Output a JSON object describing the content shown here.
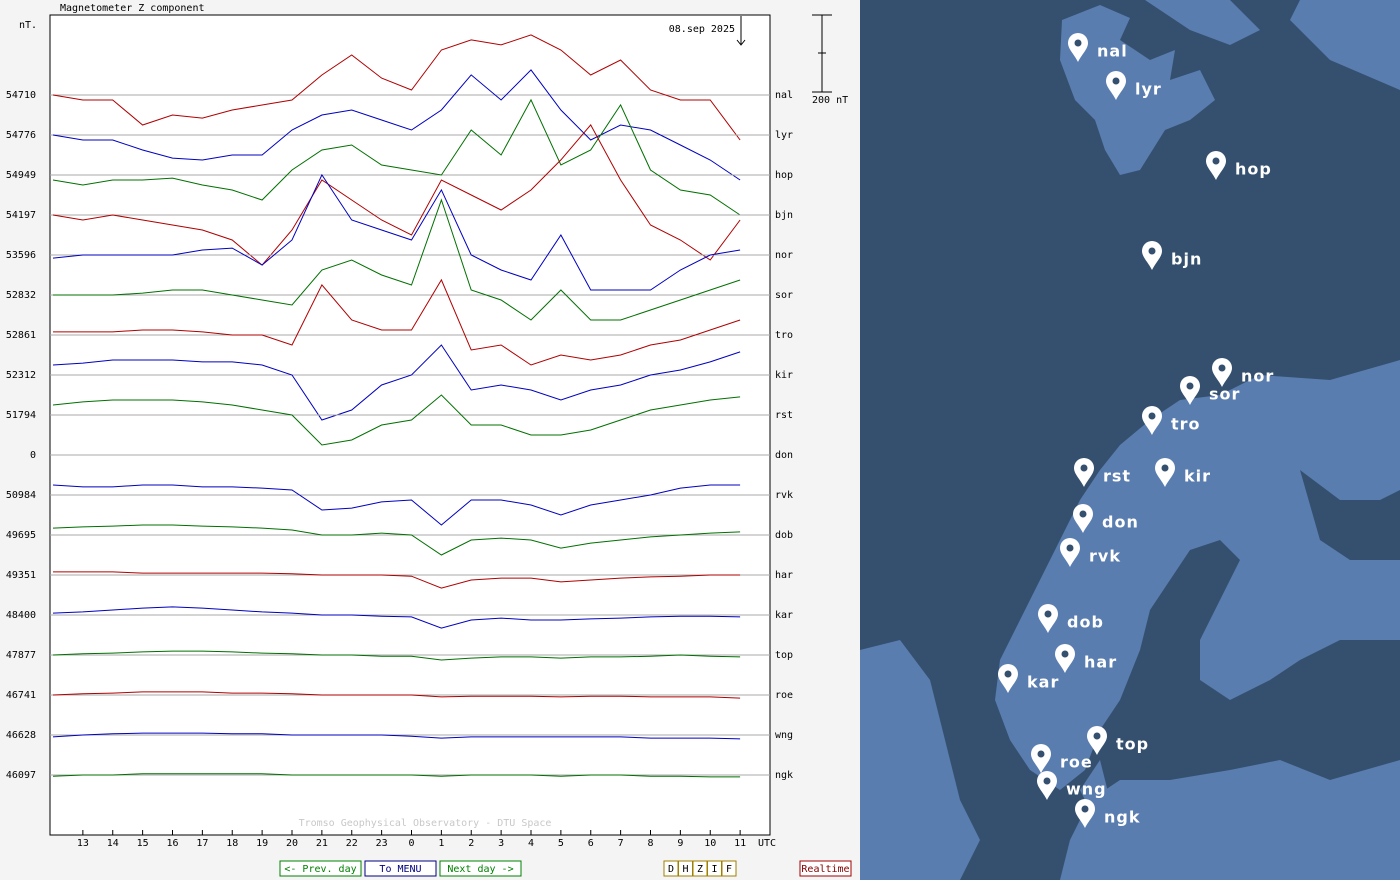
{
  "chart_data": {
    "type": "stackplot",
    "title": "Magnetometer Z component",
    "y_unit": "nT.",
    "date": "08.sep 2025",
    "scale_label": "200 nT",
    "watermark": "Tromso Geophysical Observatory - DTU Space",
    "x_label": "UTC",
    "xlim": [
      11.9,
      36
    ],
    "xticks": [
      13,
      14,
      15,
      16,
      17,
      18,
      19,
      20,
      21,
      22,
      23,
      {
        "value": 24,
        "label": "0"
      },
      {
        "value": 25,
        "label": "1"
      },
      {
        "value": 26,
        "label": "2"
      },
      {
        "value": 27,
        "label": "3"
      },
      {
        "value": 28,
        "label": "4"
      },
      {
        "value": 29,
        "label": "5"
      },
      {
        "value": 30,
        "label": "6"
      },
      {
        "value": 31,
        "label": "7"
      },
      {
        "value": 32,
        "label": "8"
      },
      {
        "value": 33,
        "label": "9"
      },
      {
        "value": 34,
        "label": "10"
      },
      {
        "value": 35,
        "label": "11"
      }
    ],
    "x": [
      12,
      13,
      14,
      15,
      16,
      17,
      18,
      19,
      20,
      21,
      22,
      23,
      24,
      25,
      26,
      27,
      28,
      29,
      30,
      31,
      32,
      33,
      34,
      35
    ],
    "series": [
      {
        "name": "nal",
        "baseline": 54710,
        "color": "#b00000",
        "values": [
          0,
          -13,
          -13,
          -78,
          -52,
          -60,
          -39,
          -26,
          -13,
          52,
          104,
          44,
          13,
          117,
          143,
          130,
          156,
          117,
          52,
          91,
          13,
          -13,
          -13,
          -117
        ]
      },
      {
        "name": "lyr",
        "baseline": 54776,
        "color": "#0000c0",
        "values": [
          0,
          -13,
          -13,
          -39,
          -60,
          -65,
          -52,
          -52,
          13,
          52,
          65,
          39,
          13,
          65,
          156,
          91,
          169,
          65,
          -13,
          26,
          13,
          -26,
          -65,
          -117
        ]
      },
      {
        "name": "hop",
        "baseline": 54949,
        "color": "#007000",
        "values": [
          -13,
          -26,
          -13,
          -13,
          -8,
          -26,
          -39,
          -65,
          13,
          65,
          78,
          26,
          13,
          0,
          117,
          52,
          195,
          26,
          65,
          182,
          13,
          -39,
          -52,
          -104
        ]
      },
      {
        "name": "bjn",
        "baseline": 54197,
        "color": "#b00000",
        "values": [
          0,
          -13,
          0,
          -13,
          -26,
          -39,
          -65,
          -130,
          -39,
          91,
          39,
          -13,
          -52,
          91,
          52,
          13,
          65,
          143,
          234,
          91,
          -26,
          -65,
          -117,
          -13
        ]
      },
      {
        "name": "nor",
        "baseline": 53596,
        "color": "#0000c0",
        "values": [
          -8,
          0,
          0,
          0,
          0,
          13,
          18,
          -26,
          39,
          208,
          91,
          65,
          39,
          169,
          0,
          -39,
          -65,
          52,
          -91,
          -91,
          -91,
          -39,
          0,
          13
        ]
      },
      {
        "name": "sor",
        "baseline": 52832,
        "color": "#007000",
        "values": [
          0,
          0,
          0,
          5,
          13,
          13,
          0,
          -13,
          -26,
          65,
          91,
          52,
          26,
          247,
          13,
          -13,
          -65,
          13,
          -65,
          -65,
          -39,
          -13,
          13,
          39
        ]
      },
      {
        "name": "tro",
        "baseline": 52861,
        "color": "#b00000",
        "values": [
          8,
          8,
          8,
          13,
          13,
          8,
          0,
          0,
          -26,
          130,
          39,
          13,
          13,
          143,
          -39,
          -26,
          -78,
          -52,
          -65,
          -52,
          -26,
          -13,
          13,
          39
        ]
      },
      {
        "name": "kir",
        "baseline": 52312,
        "color": "#0000c0",
        "values": [
          26,
          31,
          39,
          39,
          39,
          34,
          34,
          26,
          0,
          -117,
          -91,
          -26,
          0,
          78,
          -39,
          -26,
          -39,
          -65,
          -39,
          -26,
          0,
          13,
          34,
          60
        ]
      },
      {
        "name": "rst",
        "baseline": 51794,
        "color": "#007000",
        "values": [
          26,
          34,
          39,
          39,
          39,
          34,
          26,
          13,
          0,
          -78,
          -65,
          -26,
          -13,
          52,
          -26,
          -26,
          -52,
          -52,
          -39,
          -13,
          13,
          26,
          39,
          47
        ]
      },
      {
        "name": "don",
        "baseline": 0,
        "color": "#b00000",
        "values": [
          null,
          null,
          null,
          null,
          null,
          null,
          null,
          null,
          null,
          null,
          null,
          null,
          null,
          null,
          null,
          null,
          null,
          null,
          null,
          null,
          null,
          null,
          null,
          null
        ]
      },
      {
        "name": "rvk",
        "baseline": 50984,
        "color": "#0000c0",
        "values": [
          26,
          21,
          21,
          26,
          26,
          21,
          21,
          18,
          13,
          -39,
          -34,
          -18,
          -13,
          -78,
          -13,
          -13,
          -26,
          -52,
          -26,
          -13,
          0,
          18,
          26,
          26
        ]
      },
      {
        "name": "dob",
        "baseline": 49695,
        "color": "#007000",
        "values": [
          18,
          21,
          23,
          26,
          26,
          23,
          21,
          18,
          13,
          0,
          0,
          5,
          0,
          -52,
          -13,
          -8,
          -13,
          -34,
          -21,
          -13,
          -5,
          0,
          5,
          8
        ]
      },
      {
        "name": "har",
        "baseline": 49351,
        "color": "#b00000",
        "values": [
          8,
          8,
          8,
          5,
          5,
          5,
          5,
          5,
          3,
          0,
          0,
          0,
          -3,
          -34,
          -13,
          -8,
          -8,
          -18,
          -13,
          -8,
          -5,
          -3,
          0,
          0
        ]
      },
      {
        "name": "kar",
        "baseline": 48400,
        "color": "#0000c0",
        "values": [
          5,
          8,
          13,
          18,
          21,
          18,
          13,
          8,
          5,
          0,
          0,
          -3,
          -5,
          -34,
          -13,
          -8,
          -13,
          -13,
          -10,
          -8,
          -5,
          -3,
          -3,
          -5
        ]
      },
      {
        "name": "top",
        "baseline": 47877,
        "color": "#007000",
        "values": [
          0,
          3,
          5,
          8,
          10,
          10,
          8,
          5,
          3,
          0,
          0,
          -3,
          -3,
          -13,
          -8,
          -5,
          -5,
          -8,
          -5,
          -5,
          -3,
          0,
          -3,
          -5
        ]
      },
      {
        "name": "roe",
        "baseline": 46741,
        "color": "#b00000",
        "values": [
          0,
          3,
          5,
          8,
          8,
          8,
          5,
          5,
          3,
          0,
          0,
          0,
          0,
          -5,
          -3,
          -3,
          -3,
          -5,
          -3,
          -3,
          -5,
          -5,
          -5,
          -8
        ]
      },
      {
        "name": "wng",
        "baseline": 46628,
        "color": "#0000c0",
        "values": [
          -5,
          0,
          3,
          5,
          5,
          5,
          3,
          3,
          0,
          0,
          0,
          0,
          -3,
          -8,
          -5,
          -5,
          -5,
          -5,
          -5,
          -5,
          -8,
          -8,
          -8,
          -10
        ]
      },
      {
        "name": "ngk",
        "baseline": 46097,
        "color": "#007000",
        "values": [
          -3,
          0,
          0,
          3,
          3,
          3,
          3,
          3,
          0,
          0,
          0,
          0,
          0,
          -3,
          0,
          0,
          0,
          -3,
          0,
          0,
          -3,
          -3,
          -5,
          -5
        ]
      }
    ]
  },
  "ui": {
    "buttons": [
      "<- Prev. day",
      "To MENU",
      "Next day ->"
    ],
    "components": [
      "D",
      "H",
      "Z",
      "I",
      "F"
    ],
    "realtime": "Realtime"
  },
  "map": {
    "stations": [
      "nal",
      "lyr",
      "hop",
      "bjn",
      "nor",
      "sor",
      "tro",
      "rst",
      "kir",
      "don",
      "rvk",
      "dob",
      "har",
      "kar",
      "top",
      "roe",
      "wng",
      "ngk"
    ]
  }
}
